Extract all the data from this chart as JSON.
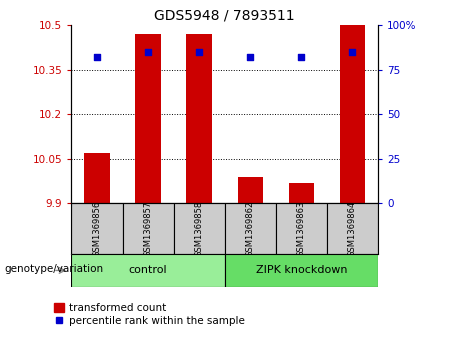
{
  "title": "GDS5948 / 7893511",
  "samples": [
    "GSM1369856",
    "GSM1369857",
    "GSM1369858",
    "GSM1369862",
    "GSM1369863",
    "GSM1369864"
  ],
  "transformed_counts": [
    10.07,
    10.47,
    10.47,
    9.99,
    9.97,
    10.5
  ],
  "percentile_ranks": [
    82,
    85,
    85,
    82,
    82,
    85
  ],
  "ylim_left": [
    9.9,
    10.5
  ],
  "ylim_right": [
    0,
    100
  ],
  "yticks_left": [
    9.9,
    10.05,
    10.2,
    10.35,
    10.5
  ],
  "ytick_labels_left": [
    "9.9",
    "10.05",
    "10.2",
    "10.35",
    "10.5"
  ],
  "yticks_right": [
    0,
    25,
    50,
    75,
    100
  ],
  "ytick_labels_right": [
    "0",
    "25",
    "50",
    "75",
    "100%"
  ],
  "hlines": [
    10.05,
    10.2,
    10.35
  ],
  "bar_color": "#cc0000",
  "scatter_color": "#0000cc",
  "bar_baseline": 9.9,
  "groups": [
    {
      "label": "control",
      "start": 0,
      "end": 3,
      "color": "#99ee99"
    },
    {
      "label": "ZIPK knockdown",
      "start": 3,
      "end": 6,
      "color": "#66dd66"
    }
  ],
  "group_label_prefix": "genotype/variation",
  "legend_bar_label": "transformed count",
  "legend_scatter_label": "percentile rank within the sample",
  "tick_label_color_left": "#cc0000",
  "tick_label_color_right": "#0000cc",
  "sample_box_color": "#cccccc",
  "bar_width": 0.5,
  "figsize": [
    4.61,
    3.63
  ],
  "dpi": 100
}
